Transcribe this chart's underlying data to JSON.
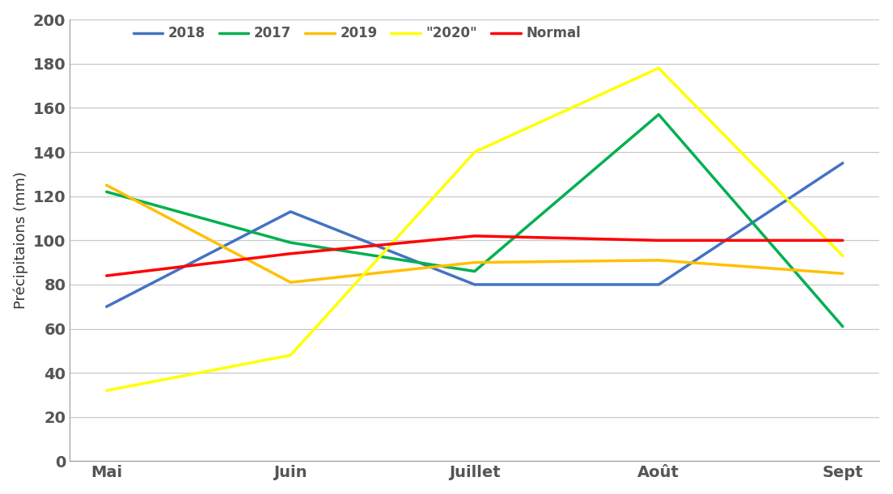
{
  "months": [
    "Mai",
    "Juin",
    "Juillet",
    "Août",
    "Sept"
  ],
  "series": {
    "2018": {
      "values": [
        70,
        113,
        80,
        80,
        135
      ],
      "color": "#4472C4"
    },
    "2017": {
      "values": [
        122,
        99,
        86,
        157,
        61
      ],
      "color": "#00B050"
    },
    "2019": {
      "values": [
        125,
        81,
        90,
        91,
        85
      ],
      "color": "#FFC000"
    },
    "\"2020\"": {
      "values": [
        32,
        48,
        140,
        178,
        93
      ],
      "color": "#FFFF00"
    },
    "Normal": {
      "values": [
        84,
        94,
        102,
        100,
        100
      ],
      "color": "#FF0000"
    }
  },
  "legend_order": [
    "2018",
    "2017",
    "2019",
    "\"2020\"",
    "Normal"
  ],
  "ylabel": "Précipitaions (mm)",
  "ylim": [
    0,
    200
  ],
  "yticks": [
    0,
    20,
    40,
    60,
    80,
    100,
    120,
    140,
    160,
    180,
    200
  ],
  "line_width": 2.5,
  "background_color": "#FFFFFF",
  "grid_color": "#C8C8C8",
  "legend_fontsize": 12,
  "tick_fontsize": 14,
  "ylabel_fontsize": 13
}
